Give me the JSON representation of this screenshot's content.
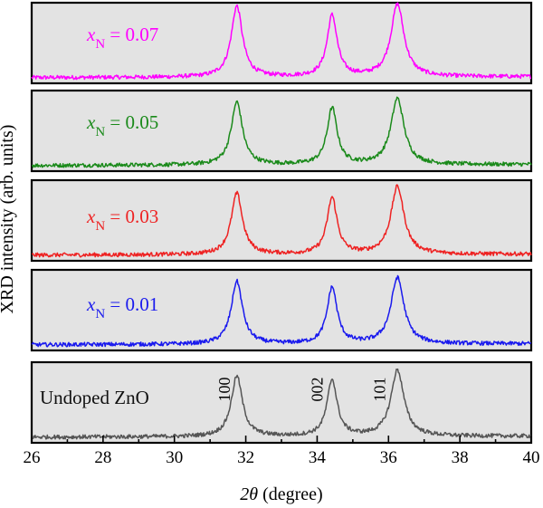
{
  "chart_data": {
    "type": "line",
    "layout": "stacked-panels",
    "xlabel_symbol": "2θ",
    "xlabel_unit": "(degree)",
    "ylabel": "XRD intensity (arb. units)",
    "xlim": [
      26,
      40
    ],
    "xticks": [
      "26",
      "28",
      "30",
      "32",
      "34",
      "36",
      "38",
      "40"
    ],
    "panels": [
      {
        "label_var": "x",
        "label_sub": "N",
        "label_rest": " = 0.07",
        "color": "#ff00ff",
        "baseline": 0.07,
        "peaks": [
          {
            "x": 31.75,
            "height": 0.88,
            "width": 0.19
          },
          {
            "x": 34.42,
            "height": 0.76,
            "width": 0.17
          },
          {
            "x": 36.25,
            "height": 0.9,
            "width": 0.22
          }
        ]
      },
      {
        "label_var": "x",
        "label_sub": "N",
        "label_rest": " = 0.05",
        "color": "#1a8a1a",
        "baseline": 0.07,
        "peaks": [
          {
            "x": 31.75,
            "height": 0.78,
            "width": 0.19
          },
          {
            "x": 34.42,
            "height": 0.7,
            "width": 0.17
          },
          {
            "x": 36.25,
            "height": 0.82,
            "width": 0.22
          }
        ]
      },
      {
        "label_var": "x",
        "label_sub": "N",
        "label_rest": " = 0.03",
        "color": "#ee2222",
        "baseline": 0.07,
        "peaks": [
          {
            "x": 31.75,
            "height": 0.76,
            "width": 0.19
          },
          {
            "x": 34.42,
            "height": 0.7,
            "width": 0.17
          },
          {
            "x": 36.25,
            "height": 0.84,
            "width": 0.22
          }
        ]
      },
      {
        "label_var": "x",
        "label_sub": "N",
        "label_rest": " = 0.01",
        "color": "#1a1aee",
        "baseline": 0.07,
        "peaks": [
          {
            "x": 31.75,
            "height": 0.78,
            "width": 0.19
          },
          {
            "x": 34.42,
            "height": 0.7,
            "width": 0.17
          },
          {
            "x": 36.25,
            "height": 0.82,
            "width": 0.22
          }
        ]
      },
      {
        "label_text": "Undoped ZnO",
        "color": "#555555",
        "baseline": 0.07,
        "peaks": [
          {
            "x": 31.75,
            "height": 0.75,
            "width": 0.19
          },
          {
            "x": 34.42,
            "height": 0.7,
            "width": 0.17
          },
          {
            "x": 36.25,
            "height": 0.82,
            "width": 0.22
          }
        ],
        "peak_labels": [
          {
            "text": "100",
            "x": 31.4
          },
          {
            "text": "002",
            "x": 34.0
          },
          {
            "text": "101",
            "x": 35.75
          }
        ]
      }
    ]
  }
}
